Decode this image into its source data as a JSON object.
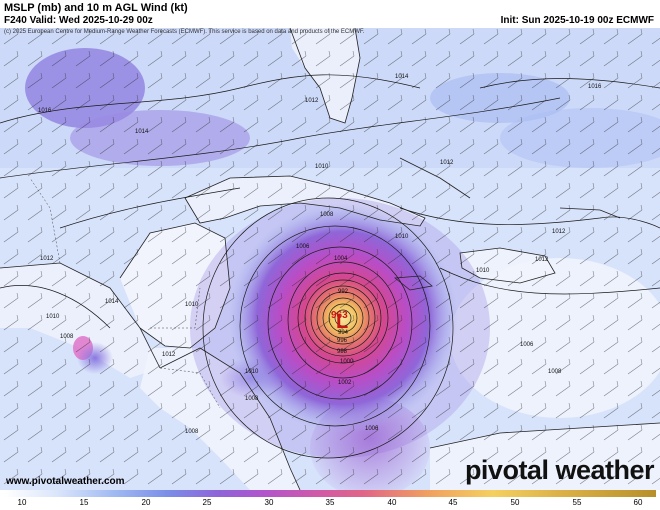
{
  "header": {
    "title": "MSLP (mb) and 10 m AGL Wind (kt)",
    "valid": "F240 Valid: Wed 2025-10-29 00z",
    "init": "Init: Sun 2025-10-19 00z ECMWF"
  },
  "map": {
    "copyright": "(c) 2025 European Centre for Medium-Range Weather Forecasts (ECMWF). This service is based on data and products of the ECMWF.",
    "site_url": "www.pivotalweather.com",
    "logo_text": "pivotal weather",
    "center_pressure_label": "963",
    "low_marker": "L",
    "isobar_labels": [
      "1016",
      "1014",
      "1012",
      "1010",
      "1008",
      "1006",
      "1004",
      "1002",
      "1000",
      "998",
      "996",
      "994",
      "992",
      "1014",
      "1012",
      "1012",
      "1010",
      "1016",
      "1014",
      "1012",
      "1012",
      "1010",
      "1012",
      "1010",
      "1010",
      "1008",
      "1008",
      "1006",
      "1006",
      "1008",
      "1008",
      "1010"
    ]
  },
  "colorbar": {
    "ticks": [
      "10",
      "15",
      "20",
      "25",
      "30",
      "35",
      "40",
      "45",
      "50",
      "55",
      "60"
    ],
    "colors": [
      "#ffffff",
      "#dbe6fb",
      "#9fb9f2",
      "#7a8ee8",
      "#8f63d8",
      "#b254cc",
      "#cf5aa8",
      "#e06488",
      "#f0a060",
      "#f4d060",
      "#b8902a"
    ]
  }
}
